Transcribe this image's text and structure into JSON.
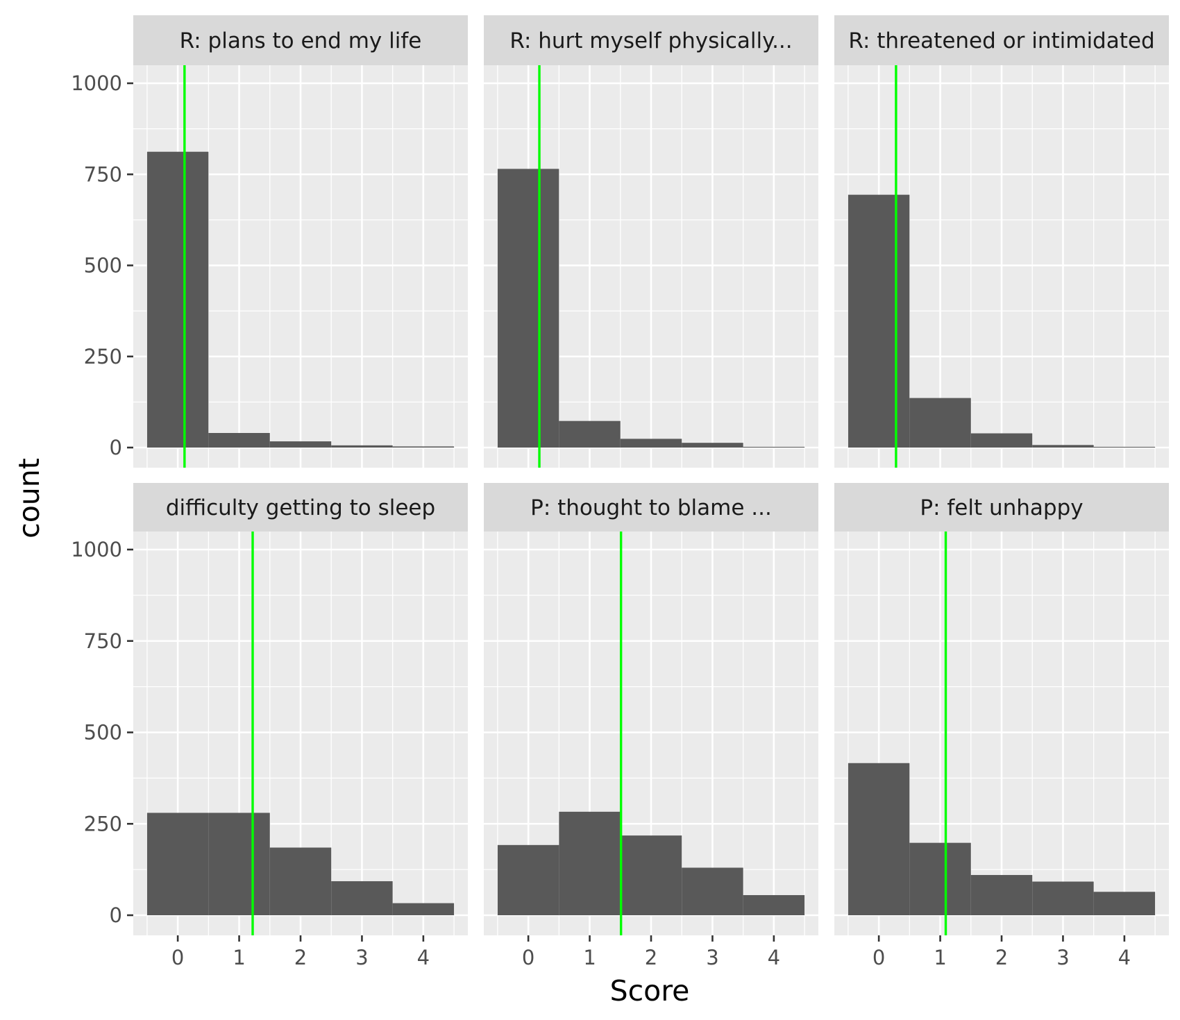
{
  "chart_data": {
    "type": "bar",
    "xlabel": "Score",
    "ylabel": "count",
    "ylim": [
      0,
      1000
    ],
    "y_ticks": [
      0,
      250,
      500,
      750,
      1000
    ],
    "x_ticks": [
      0,
      1,
      2,
      3,
      4
    ],
    "x_range": [
      -0.5,
      4.5
    ],
    "grid": true,
    "bar_color": "#595959",
    "mean_line_color": "#00ff00",
    "facets": [
      {
        "label": "R: plans to end my life",
        "bins": [
          0,
          1,
          2,
          3,
          4
        ],
        "counts": [
          812,
          40,
          17,
          6,
          3
        ],
        "mean": 0.11
      },
      {
        "label": "R: hurt myself physically...",
        "bins": [
          0,
          1,
          2,
          3,
          4
        ],
        "counts": [
          765,
          73,
          24,
          13,
          2
        ],
        "mean": 0.18
      },
      {
        "label": "R: threatened or intimidated",
        "bins": [
          0,
          1,
          2,
          3,
          4
        ],
        "counts": [
          694,
          136,
          39,
          7,
          2
        ],
        "mean": 0.28
      },
      {
        "label": "difficulty getting to sleep",
        "bins": [
          0,
          1,
          2,
          3,
          4
        ],
        "counts": [
          280,
          280,
          185,
          93,
          33
        ],
        "mean": 1.22
      },
      {
        "label": "P: thought to blame ...",
        "bins": [
          0,
          1,
          2,
          3,
          4
        ],
        "counts": [
          192,
          283,
          218,
          130,
          55
        ],
        "mean": 1.51
      },
      {
        "label": "P: felt unhappy",
        "bins": [
          0,
          1,
          2,
          3,
          4
        ],
        "counts": [
          416,
          198,
          110,
          92,
          64
        ],
        "mean": 1.09
      }
    ]
  }
}
